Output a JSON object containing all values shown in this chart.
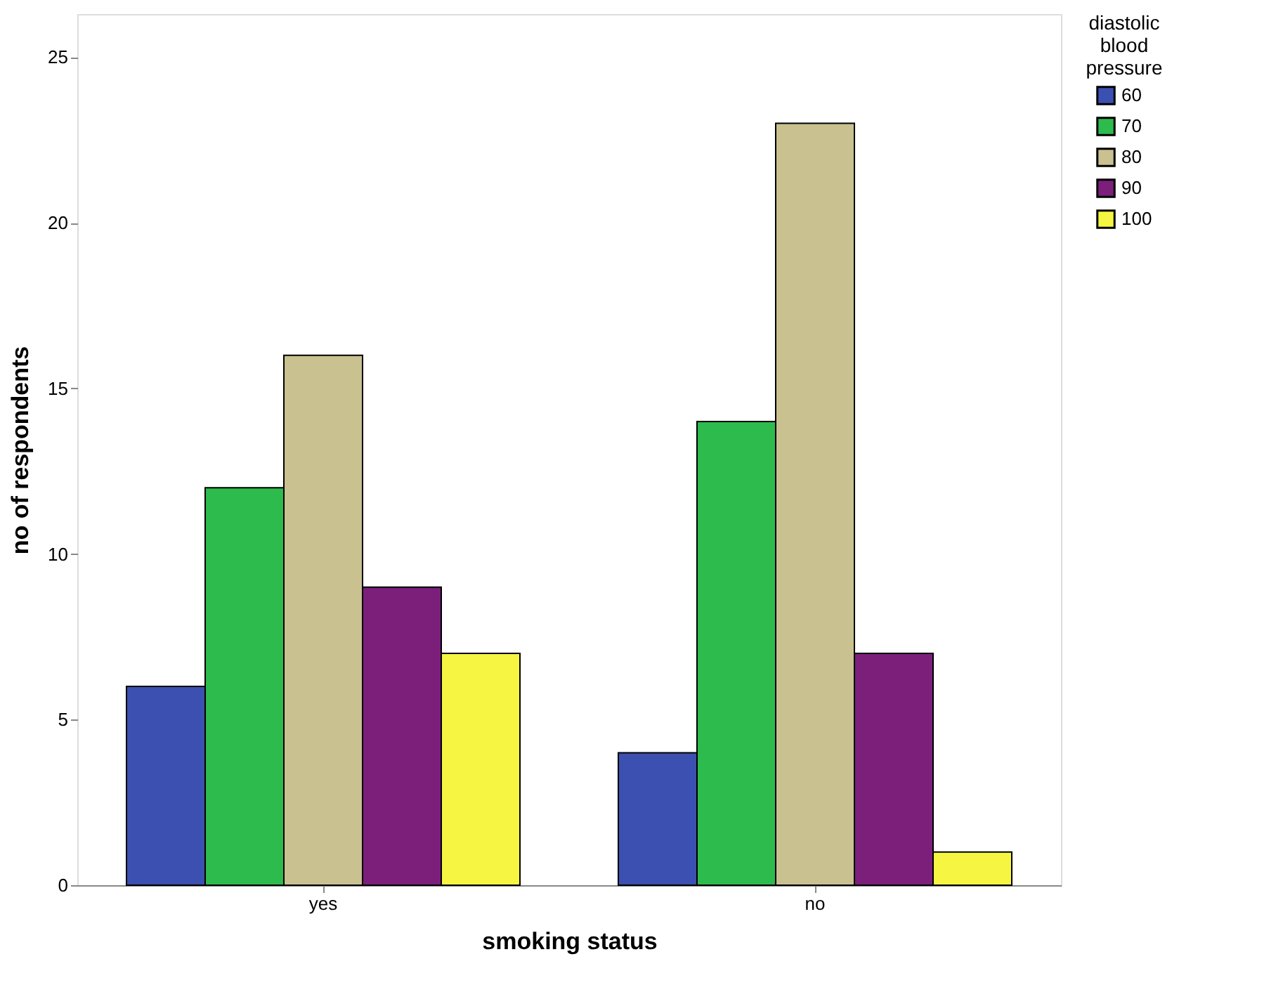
{
  "chart_data": {
    "type": "bar",
    "xlabel": "smoking status",
    "ylabel": "no of respondents",
    "legend_title": "diastolic blood pressure",
    "categories": [
      "yes",
      "no"
    ],
    "series": [
      {
        "name": "60",
        "color": "#3b50b0",
        "values": [
          6,
          4
        ]
      },
      {
        "name": "70",
        "color": "#2dbb4d",
        "values": [
          12,
          14
        ]
      },
      {
        "name": "80",
        "color": "#c9c190",
        "values": [
          16,
          23
        ]
      },
      {
        "name": "90",
        "color": "#7b1f7b",
        "values": [
          9,
          7
        ]
      },
      {
        "name": "100",
        "color": "#f5f542",
        "values": [
          7,
          1
        ]
      }
    ],
    "ylim": [
      0,
      26.3
    ],
    "yticks": [
      0,
      5,
      10,
      15,
      20,
      25
    ],
    "grid": false,
    "legend": "top right"
  }
}
